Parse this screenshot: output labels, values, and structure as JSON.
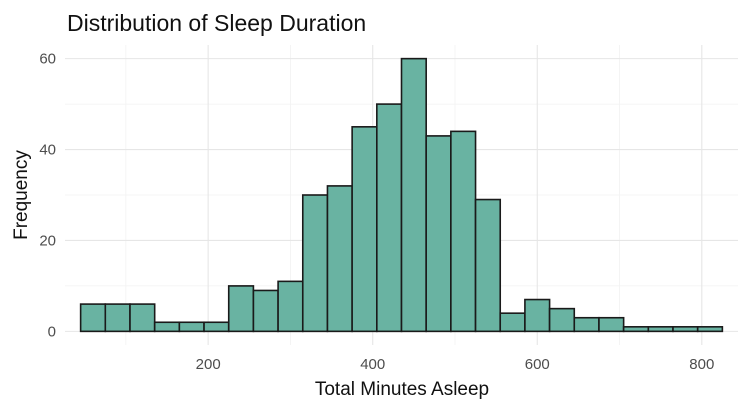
{
  "chart_data": {
    "type": "bar",
    "title": "Distribution of Sleep Duration",
    "xlabel": "Total Minutes Asleep",
    "ylabel": "Frequency",
    "bin_width": 30,
    "bins": [
      {
        "x0": 45,
        "x1": 75,
        "count": 6
      },
      {
        "x0": 75,
        "x1": 105,
        "count": 6
      },
      {
        "x0": 105,
        "x1": 135,
        "count": 6
      },
      {
        "x0": 135,
        "x1": 165,
        "count": 2
      },
      {
        "x0": 165,
        "x1": 195,
        "count": 2
      },
      {
        "x0": 195,
        "x1": 225,
        "count": 2
      },
      {
        "x0": 225,
        "x1": 255,
        "count": 10
      },
      {
        "x0": 255,
        "x1": 285,
        "count": 9
      },
      {
        "x0": 285,
        "x1": 315,
        "count": 11
      },
      {
        "x0": 315,
        "x1": 345,
        "count": 30
      },
      {
        "x0": 345,
        "x1": 375,
        "count": 32
      },
      {
        "x0": 375,
        "x1": 405,
        "count": 45
      },
      {
        "x0": 405,
        "x1": 435,
        "count": 50
      },
      {
        "x0": 435,
        "x1": 465,
        "count": 60
      },
      {
        "x0": 465,
        "x1": 495,
        "count": 43
      },
      {
        "x0": 495,
        "x1": 525,
        "count": 44
      },
      {
        "x0": 525,
        "x1": 555,
        "count": 29
      },
      {
        "x0": 555,
        "x1": 585,
        "count": 4
      },
      {
        "x0": 585,
        "x1": 615,
        "count": 7
      },
      {
        "x0": 615,
        "x1": 645,
        "count": 5
      },
      {
        "x0": 645,
        "x1": 675,
        "count": 3
      },
      {
        "x0": 675,
        "x1": 705,
        "count": 3
      },
      {
        "x0": 705,
        "x1": 735,
        "count": 1
      },
      {
        "x0": 735,
        "x1": 765,
        "count": 1
      },
      {
        "x0": 765,
        "x1": 795,
        "count": 1
      },
      {
        "x0": 795,
        "x1": 825,
        "count": 1
      }
    ],
    "xlim": [
      26,
      844
    ],
    "ylim": [
      -3,
      63
    ],
    "x_ticks": [
      200,
      400,
      600,
      800
    ],
    "y_ticks": [
      0,
      20,
      40,
      60
    ],
    "grid": true,
    "legend": "none",
    "colors": {
      "bar_fill": "#69b3a2",
      "bar_outline": "#1a1a1a"
    }
  }
}
